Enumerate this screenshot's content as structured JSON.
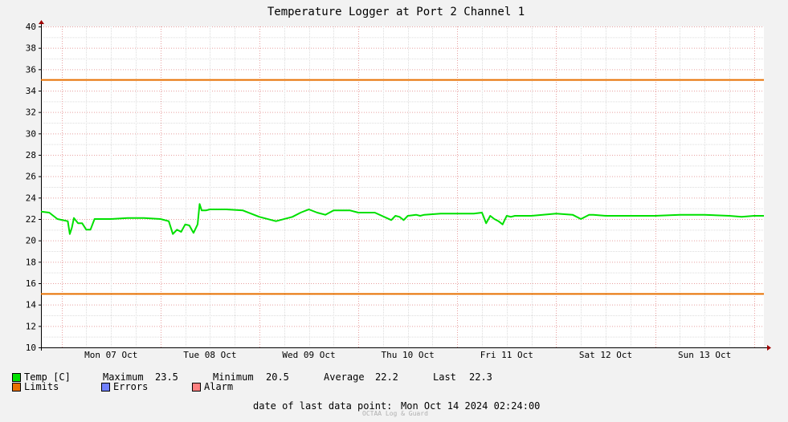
{
  "chart_data": {
    "type": "line",
    "title": "Temperature Logger at Port 2 Channel 1",
    "xlabel": "",
    "ylabel": "",
    "ylim": [
      10,
      40
    ],
    "yticks": [
      10,
      12,
      14,
      16,
      18,
      20,
      22,
      24,
      26,
      28,
      30,
      32,
      34,
      36,
      38,
      40
    ],
    "xlim": [
      "2024-10-06T19:00",
      "2024-10-14T02:24"
    ],
    "xtick_labels": [
      "Mon 07 Oct",
      "Tue 08 Oct",
      "Wed 09 Oct",
      "Thu 10 Oct",
      "Fri 11 Oct",
      "Sat 12 Oct",
      "Sun 13 Oct"
    ],
    "xtick_times": [
      "2024-10-07T12:00",
      "2024-10-08T12:00",
      "2024-10-09T12:00",
      "2024-10-10T12:00",
      "2024-10-11T12:00",
      "2024-10-12T12:00",
      "2024-10-13T12:00"
    ],
    "grid": true,
    "series": [
      {
        "name": "Temp [C]",
        "color": "#00e000",
        "x": [
          "2024-10-06T19:00",
          "2024-10-06T21:00",
          "2024-10-06T23:00",
          "2024-10-07T01:30",
          "2024-10-07T02:00",
          "2024-10-07T02:30",
          "2024-10-07T03:00",
          "2024-10-07T04:00",
          "2024-10-07T05:00",
          "2024-10-07T06:00",
          "2024-10-07T07:00",
          "2024-10-07T08:00",
          "2024-10-07T09:00",
          "2024-10-07T10:00",
          "2024-10-07T12:00",
          "2024-10-07T16:00",
          "2024-10-07T20:00",
          "2024-10-08T00:00",
          "2024-10-08T02:00",
          "2024-10-08T03:00",
          "2024-10-08T04:00",
          "2024-10-08T05:00",
          "2024-10-08T06:00",
          "2024-10-08T07:00",
          "2024-10-08T08:00",
          "2024-10-08T09:00",
          "2024-10-08T09:30",
          "2024-10-08T10:00",
          "2024-10-08T10:30",
          "2024-10-08T11:00",
          "2024-10-08T12:00",
          "2024-10-08T16:00",
          "2024-10-08T20:00",
          "2024-10-09T00:00",
          "2024-10-09T04:00",
          "2024-10-09T08:00",
          "2024-10-09T10:00",
          "2024-10-09T12:00",
          "2024-10-09T14:00",
          "2024-10-09T16:00",
          "2024-10-09T17:00",
          "2024-10-09T18:00",
          "2024-10-09T20:00",
          "2024-10-09T22:00",
          "2024-10-10T00:00",
          "2024-10-10T04:00",
          "2024-10-10T08:00",
          "2024-10-10T09:00",
          "2024-10-10T10:00",
          "2024-10-10T11:00",
          "2024-10-10T12:00",
          "2024-10-10T14:00",
          "2024-10-10T15:00",
          "2024-10-10T16:00",
          "2024-10-10T20:00",
          "2024-10-11T00:00",
          "2024-10-11T04:00",
          "2024-10-11T06:00",
          "2024-10-11T07:00",
          "2024-10-11T08:00",
          "2024-10-11T09:00",
          "2024-10-11T10:00",
          "2024-10-11T11:00",
          "2024-10-11T12:00",
          "2024-10-11T13:00",
          "2024-10-11T14:00",
          "2024-10-11T18:00",
          "2024-10-12T00:00",
          "2024-10-12T04:00",
          "2024-10-12T06:00",
          "2024-10-12T08:00",
          "2024-10-12T09:00",
          "2024-10-12T12:00",
          "2024-10-12T18:00",
          "2024-10-13T00:00",
          "2024-10-13T06:00",
          "2024-10-13T12:00",
          "2024-10-13T18:00",
          "2024-10-13T21:00",
          "2024-10-14T00:00",
          "2024-10-14T02:24"
        ],
        "values": [
          22.7,
          22.6,
          22.0,
          21.8,
          20.6,
          21.2,
          22.1,
          21.6,
          21.6,
          21.0,
          21.0,
          22.0,
          22.0,
          22.0,
          22.0,
          22.1,
          22.1,
          22.0,
          21.8,
          20.6,
          21.0,
          20.8,
          21.5,
          21.4,
          20.7,
          21.5,
          23.4,
          22.8,
          22.8,
          22.8,
          22.9,
          22.9,
          22.8,
          22.2,
          21.8,
          22.2,
          22.6,
          22.9,
          22.6,
          22.4,
          22.6,
          22.8,
          22.8,
          22.8,
          22.6,
          22.6,
          21.9,
          22.3,
          22.2,
          21.9,
          22.3,
          22.4,
          22.3,
          22.4,
          22.5,
          22.5,
          22.5,
          22.6,
          21.6,
          22.3,
          22.0,
          21.8,
          21.5,
          22.3,
          22.2,
          22.3,
          22.3,
          22.5,
          22.4,
          22.0,
          22.4,
          22.4,
          22.3,
          22.3,
          22.3,
          22.4,
          22.4,
          22.3,
          22.2,
          22.3,
          22.3
        ]
      },
      {
        "name": "Limits",
        "color": "#e87000",
        "upper": 35,
        "lower": 15
      }
    ]
  },
  "legend": {
    "temp": {
      "label": "Temp [C]",
      "color": "#00e000"
    },
    "limits": {
      "label": "Limits",
      "color": "#e87000"
    },
    "errors": {
      "label": "Errors",
      "color": "#7080ff"
    },
    "alarm": {
      "label": "Alarm",
      "color": "#ff8080"
    },
    "stats": {
      "maximum_label": "Maximum",
      "maximum": "23.5",
      "minimum_label": "Minimum",
      "minimum": "20.5",
      "average_label": "Average",
      "average": "22.2",
      "last_label": "Last",
      "last": "22.3"
    }
  },
  "footer": {
    "last_point_label": "date of last data point:",
    "last_point_value": "Mon Oct 14 2024 02:24:00",
    "watermark": "OCTAA Log & Guard"
  }
}
